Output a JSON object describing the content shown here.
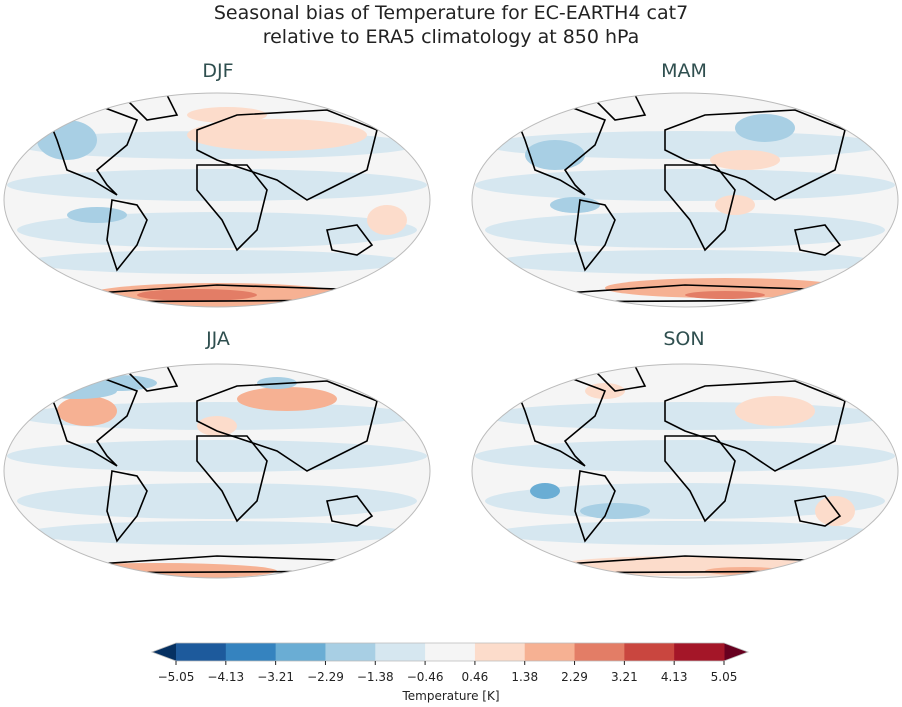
{
  "title_line1": "Seasonal bias of Temperature for EC-EARTH4 cat7",
  "title_line2": "relative to ERA5 climatology at 850 hPa",
  "panels": [
    {
      "season": "DJF"
    },
    {
      "season": "MAM"
    },
    {
      "season": "JJA"
    },
    {
      "season": "SON"
    }
  ],
  "colorbar": {
    "label": "Temperature [K]",
    "ticks": [
      "−5.05",
      "−4.13",
      "−3.21",
      "−2.29",
      "−1.38",
      "−0.46",
      "0.46",
      "1.38",
      "2.29",
      "3.21",
      "4.13",
      "5.05"
    ],
    "colors": [
      "#1d5a9c",
      "#3583bf",
      "#6aadd4",
      "#a8cfe4",
      "#d6e7f0",
      "#f5f5f5",
      "#fcdccb",
      "#f6b193",
      "#e37d66",
      "#c9463f",
      "#a41628"
    ],
    "under_color": "#053061",
    "over_color": "#67001f",
    "extend": "both"
  }
}
